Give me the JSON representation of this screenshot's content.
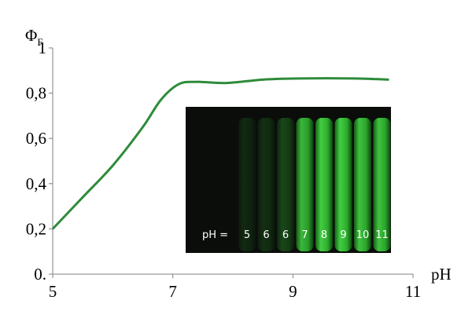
{
  "chart_data": {
    "type": "line",
    "ylabel": "Φ",
    "ylabel_sub": "F",
    "xlabel": "pH",
    "x": [
      5,
      5.5,
      6,
      6.5,
      6.8,
      7.1,
      7.4,
      7.9,
      8.5,
      9.1,
      10,
      10.6
    ],
    "series": [
      {
        "color": "#2e8b3a",
        "values": [
          0.2,
          0.34,
          0.48,
          0.65,
          0.77,
          0.84,
          0.85,
          0.845,
          0.86,
          0.865,
          0.865,
          0.86
        ]
      }
    ],
    "xlim": [
      5,
      11
    ],
    "xticks": [
      5,
      7,
      9,
      11
    ],
    "ylim": [
      0,
      1
    ],
    "yticks": [
      {
        "value": 0,
        "label": "0."
      },
      {
        "value": 0.2,
        "label": "0,2"
      },
      {
        "value": 0.4,
        "label": "0,4"
      },
      {
        "value": 0.6,
        "label": "0,6"
      },
      {
        "value": 0.8,
        "label": "0,8"
      },
      1
    ],
    "inset": {
      "label": "pH =",
      "tubes": [
        "5",
        "6",
        "6",
        "7",
        "8",
        "9",
        "10",
        "11"
      ]
    }
  }
}
